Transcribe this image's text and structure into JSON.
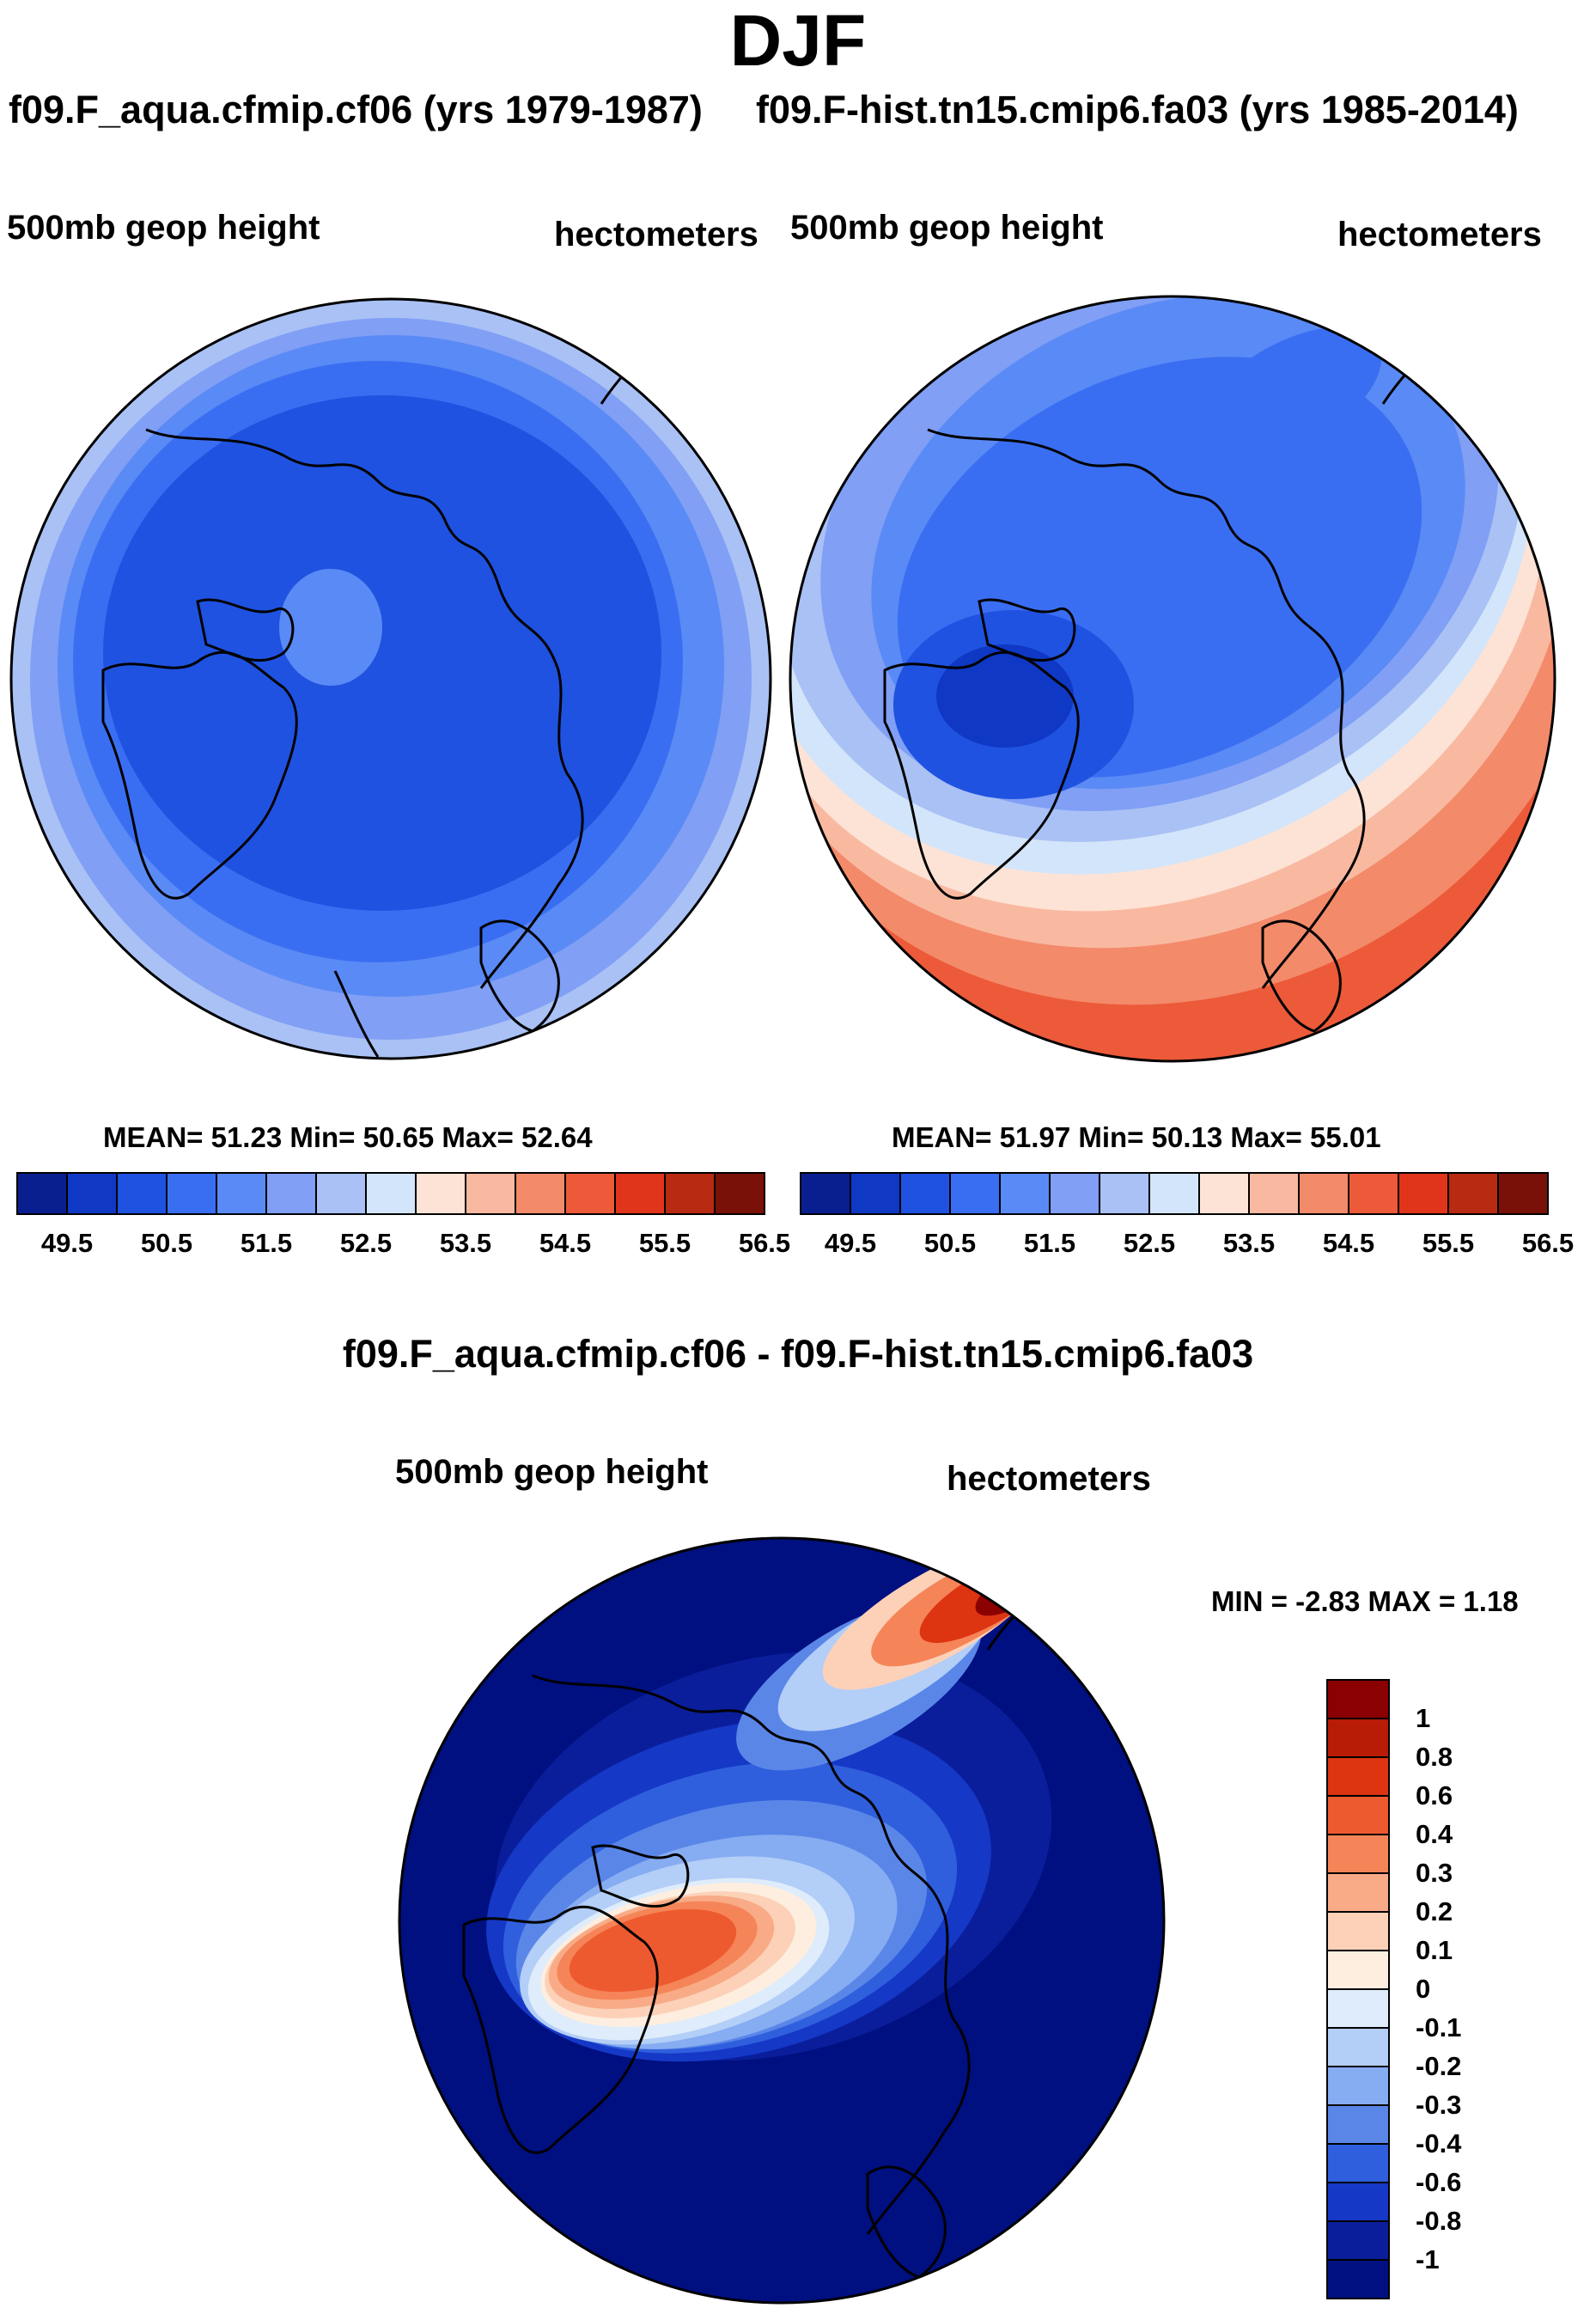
{
  "title": "DJF",
  "panels": [
    {
      "case": "f09.F_aqua.cfmip.cf06 (yrs 1979-1987)",
      "variable": "500mb geop height",
      "units": "hectometers",
      "stats_label": "MEAN=  51.23  Min=  50.65  Max=  52.64"
    },
    {
      "case": "f09.F-hist.tn15.cmip6.fa03 (yrs 1985-2014)",
      "variable": "500mb geop height",
      "units": "hectometers",
      "stats_label": "MEAN=  51.97  Min=  50.13  Max=  55.01"
    }
  ],
  "diff": {
    "title": "f09.F_aqua.cfmip.cf06 - f09.F-hist.tn15.cmip6.fa03",
    "variable": "500mb geop height",
    "units": "hectometers",
    "stats_label": "MIN =  -2.83 MAX =    1.18"
  },
  "chart_data": [
    {
      "type": "heatmap",
      "projection": "north polar stereographic",
      "title": "f09.F_aqua.cfmip.cf06 (yrs 1979-1987)",
      "variable": "500mb geop height",
      "units": "hectometers",
      "mean": 51.23,
      "min": 50.65,
      "max": 52.64,
      "colorbar_ticks": [
        "49.5",
        "50.5",
        "51.5",
        "52.5",
        "53.5",
        "54.5",
        "55.5",
        "56.5"
      ],
      "colorbar_colors": [
        "#0a1f8f",
        "#0f38c4",
        "#1f52e0",
        "#3a6ef2",
        "#5a8af5",
        "#809ff5",
        "#a9c1f5",
        "#d3e5fa",
        "#fde3d6",
        "#f9b9a1",
        "#f38a6a",
        "#ec5a39",
        "#e0351b",
        "#b82a12",
        "#7a1108"
      ]
    },
    {
      "type": "heatmap",
      "projection": "north polar stereographic",
      "title": "f09.F-hist.tn15.cmip6.fa03 (yrs 1985-2014)",
      "variable": "500mb geop height",
      "units": "hectometers",
      "mean": 51.97,
      "min": 50.13,
      "max": 55.01,
      "colorbar_ticks": [
        "49.5",
        "50.5",
        "51.5",
        "52.5",
        "53.5",
        "54.5",
        "55.5",
        "56.5"
      ],
      "colorbar_colors": [
        "#0a1f8f",
        "#0f38c4",
        "#1f52e0",
        "#3a6ef2",
        "#5a8af5",
        "#809ff5",
        "#a9c1f5",
        "#d3e5fa",
        "#fde3d6",
        "#f9b9a1",
        "#f38a6a",
        "#ec5a39",
        "#e0351b",
        "#b82a12",
        "#7a1108"
      ]
    },
    {
      "type": "heatmap",
      "projection": "north polar stereographic",
      "title": "f09.F_aqua.cfmip.cf06 - f09.F-hist.tn15.cmip6.fa03",
      "variable": "500mb geop height",
      "units": "hectometers",
      "min": -2.83,
      "max": 1.18,
      "colorbar_ticks": [
        "1",
        "0.8",
        "0.6",
        "0.4",
        "0.3",
        "0.2",
        "0.1",
        "0",
        "-0.1",
        "-0.2",
        "-0.3",
        "-0.4",
        "-0.6",
        "-0.8",
        "-1"
      ],
      "colorbar_colors": [
        "#8b0000",
        "#b81c06",
        "#dd3412",
        "#ee5a2f",
        "#f58558",
        "#f8ab86",
        "#fcd1b8",
        "#fdeee0",
        "#deecfb",
        "#b3cef7",
        "#86acf1",
        "#5a86e8",
        "#2f5fdd",
        "#1538c6",
        "#0a1e9b",
        "#001080"
      ]
    }
  ]
}
